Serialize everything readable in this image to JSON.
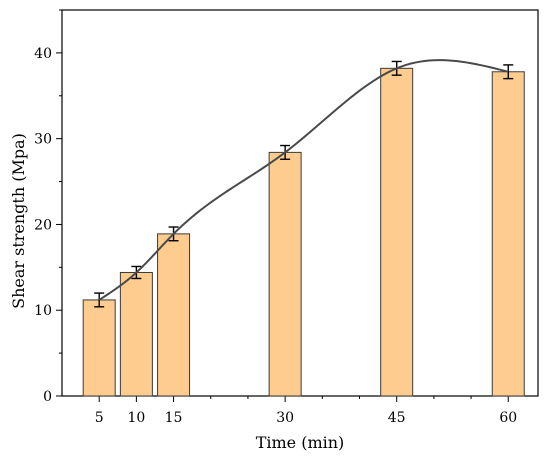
{
  "chart_data": {
    "type": "bar",
    "title": "",
    "xlabel": "Time (min)",
    "ylabel": "Shear strength (Mpa)",
    "categories": [
      "5",
      "10",
      "15",
      "30",
      "45",
      "60"
    ],
    "x": [
      5,
      10,
      15,
      30,
      45,
      60
    ],
    "values": [
      11.2,
      14.4,
      18.9,
      28.4,
      38.2,
      37.8
    ],
    "error": [
      0.8,
      0.7,
      0.8,
      0.8,
      0.8,
      0.8
    ],
    "ylim": [
      0,
      45
    ],
    "xlim": [
      0,
      64
    ],
    "yticks": [
      0,
      10,
      20,
      30,
      40
    ],
    "grid": false,
    "legend": "none",
    "fit_line": true,
    "colors": {
      "bar_fill": "#FDCC8E",
      "bar_stroke": "#3a3a3a",
      "line": "#4a4a4a",
      "axis": "#000000"
    }
  }
}
